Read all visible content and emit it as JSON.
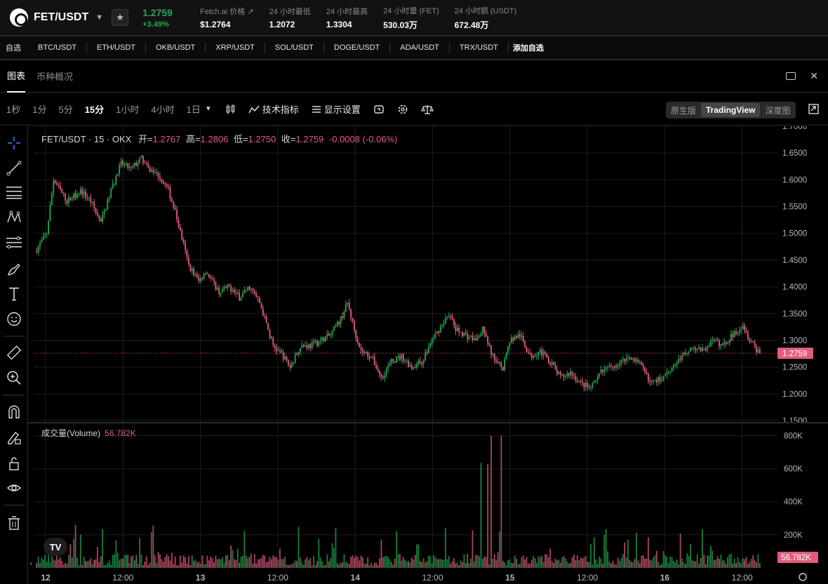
{
  "header": {
    "pair": "FET/USDT",
    "price": "1.2759",
    "change": "+3.49%",
    "stats": [
      {
        "label": "Fetch.ai 价格 ↗",
        "value": "$1.2764"
      },
      {
        "label": "24 小时最低",
        "value": "1.2072"
      },
      {
        "label": "24 小时最高",
        "value": "1.3304"
      },
      {
        "label": "24 小时量 (FET)",
        "value": "530.03万"
      },
      {
        "label": "24 小时额 (USDT)",
        "value": "672.48万"
      }
    ],
    "accent_up": "#25a750",
    "accent_down": "#e15c7d"
  },
  "favorites": {
    "label": "自选",
    "items": [
      "BTC/USDT",
      "ETH/USDT",
      "OKB/USDT",
      "XRP/USDT",
      "SOL/USDT",
      "DOGE/USDT",
      "ADA/USDT",
      "TRX/USDT"
    ],
    "add_label": "添加自选"
  },
  "tabs": [
    {
      "label": "图表",
      "active": true
    },
    {
      "label": "币种概况",
      "active": false
    }
  ],
  "toolbar": {
    "intervals": [
      "1秒",
      "1分",
      "5分",
      "15分",
      "1小时",
      "4小时",
      "1日"
    ],
    "active_interval": "15分",
    "indicators_label": "技术指标",
    "display_label": "显示设置",
    "views": [
      "原生版",
      "TradingView",
      "深度图"
    ],
    "active_view": "TradingView"
  },
  "drawing_tools": [
    "crosshair-icon",
    "trend-line-icon",
    "horizontal-lines-icon",
    "pattern-icon",
    "fib-icon",
    "brush-icon",
    "text-icon",
    "emoji-icon",
    "ruler-icon",
    "zoom-in-icon",
    "magnet-icon",
    "lock-pencil-icon",
    "lock-icon",
    "eye-icon",
    "trash-icon"
  ],
  "legend": {
    "symbol": "FET/USDT · 15 · OKX",
    "open_label": "开=",
    "open": "1.2767",
    "high_label": "高=",
    "high": "1.2806",
    "low_label": "低=",
    "low": "1.2750",
    "close_label": "收=",
    "close": "1.2759",
    "change": "-0.0008 (-0.06%)"
  },
  "volume_legend": {
    "label": "成交量(Volume)",
    "value": "56.782K"
  },
  "tv_logo": "TV",
  "chart_data": {
    "type": "candlestick",
    "price_axis": {
      "ticks": [
        "1.7000",
        "1.6500",
        "1.6000",
        "1.5500",
        "1.5000",
        "1.4500",
        "1.4000",
        "1.3500",
        "1.3000",
        "1.2500",
        "1.2000",
        "1.1500"
      ],
      "range": [
        1.15,
        1.7
      ]
    },
    "volume_axis": {
      "ticks": [
        "800K",
        "600K",
        "400K",
        "200K"
      ],
      "range": [
        0,
        870000
      ]
    },
    "time_ticks": [
      "12",
      "12:00",
      "13",
      "12:00",
      "14",
      "12:00",
      "15",
      "12:00",
      "16",
      "12:00"
    ],
    "last_price": "1.2759",
    "last_volume": "56.782K",
    "close_path": [
      [
        0,
        1.47
      ],
      [
        6,
        1.5
      ],
      [
        10,
        1.6
      ],
      [
        18,
        1.56
      ],
      [
        26,
        1.58
      ],
      [
        32,
        1.56
      ],
      [
        38,
        1.52
      ],
      [
        44,
        1.58
      ],
      [
        50,
        1.63
      ],
      [
        56,
        1.62
      ],
      [
        62,
        1.64
      ],
      [
        66,
        1.62
      ],
      [
        72,
        1.61
      ],
      [
        78,
        1.58
      ],
      [
        82,
        1.54
      ],
      [
        86,
        1.49
      ],
      [
        90,
        1.44
      ],
      [
        96,
        1.41
      ],
      [
        100,
        1.43
      ],
      [
        104,
        1.41
      ],
      [
        108,
        1.39
      ],
      [
        114,
        1.4
      ],
      [
        120,
        1.38
      ],
      [
        126,
        1.4
      ],
      [
        132,
        1.37
      ],
      [
        136,
        1.33
      ],
      [
        140,
        1.29
      ],
      [
        146,
        1.27
      ],
      [
        150,
        1.25
      ],
      [
        156,
        1.29
      ],
      [
        162,
        1.29
      ],
      [
        168,
        1.3
      ],
      [
        174,
        1.31
      ],
      [
        180,
        1.34
      ],
      [
        184,
        1.37
      ],
      [
        188,
        1.32
      ],
      [
        192,
        1.28
      ],
      [
        198,
        1.27
      ],
      [
        204,
        1.23
      ],
      [
        210,
        1.26
      ],
      [
        216,
        1.27
      ],
      [
        222,
        1.25
      ],
      [
        228,
        1.26
      ],
      [
        234,
        1.3
      ],
      [
        240,
        1.33
      ],
      [
        244,
        1.35
      ],
      [
        248,
        1.32
      ],
      [
        254,
        1.31
      ],
      [
        260,
        1.3
      ],
      [
        264,
        1.32
      ],
      [
        270,
        1.27
      ],
      [
        276,
        1.25
      ],
      [
        280,
        1.3
      ],
      [
        286,
        1.31
      ],
      [
        292,
        1.27
      ],
      [
        298,
        1.28
      ],
      [
        304,
        1.26
      ],
      [
        310,
        1.23
      ],
      [
        316,
        1.24
      ],
      [
        322,
        1.22
      ],
      [
        328,
        1.21
      ],
      [
        334,
        1.24
      ],
      [
        340,
        1.25
      ],
      [
        346,
        1.26
      ],
      [
        352,
        1.27
      ],
      [
        358,
        1.25
      ],
      [
        364,
        1.22
      ],
      [
        370,
        1.23
      ],
      [
        376,
        1.25
      ],
      [
        382,
        1.27
      ],
      [
        388,
        1.29
      ],
      [
        394,
        1.28
      ],
      [
        400,
        1.3
      ],
      [
        406,
        1.29
      ],
      [
        412,
        1.31
      ],
      [
        418,
        1.33
      ],
      [
        422,
        1.3
      ],
      [
        428,
        1.275
      ]
    ]
  }
}
